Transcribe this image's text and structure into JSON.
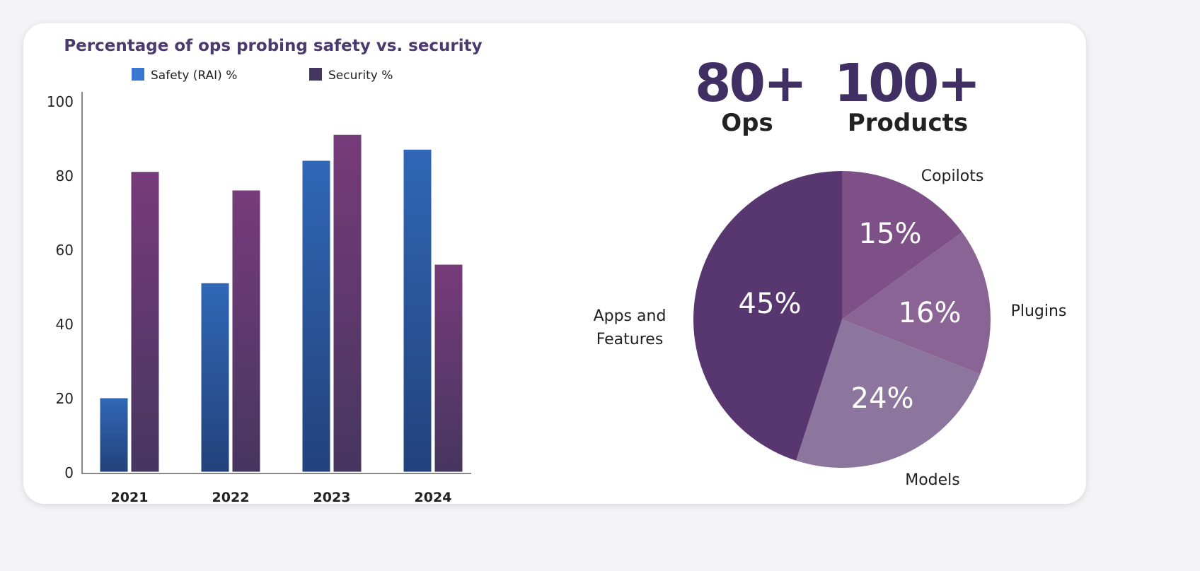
{
  "chart_data": [
    {
      "type": "bar",
      "title": "Percentage of ops probing safety vs. security",
      "categories": [
        "2021",
        "2022",
        "2023",
        "2024"
      ],
      "series": [
        {
          "name": "Safety (RAI) %",
          "values": [
            20,
            51,
            84,
            87
          ],
          "color": "#2f62b0"
        },
        {
          "name": "Security %",
          "values": [
            81,
            76,
            91,
            56
          ],
          "color": "#6e3a78"
        }
      ],
      "ylim": [
        0,
        100
      ],
      "yticks": [
        "0",
        "20",
        "40",
        "60",
        "80",
        "100"
      ],
      "legend": "top",
      "xlabel": "",
      "ylabel": ""
    },
    {
      "type": "pie",
      "slices": [
        {
          "label": "Copilots",
          "value": 15,
          "text": "15%",
          "color": "#7e5088"
        },
        {
          "label": "Plugins",
          "value": 16,
          "text": "16%",
          "color": "#8a6495"
        },
        {
          "label": "Models",
          "value": 24,
          "text": "24%",
          "color": "#8c769d"
        },
        {
          "label": "Apps and Features",
          "label_lines": [
            "Apps and",
            "Features"
          ],
          "value": 45,
          "text": "45%",
          "color": "#58366f"
        }
      ]
    }
  ],
  "stats": [
    {
      "value": "80+",
      "label": "Ops"
    },
    {
      "value": "100+",
      "label": "Products"
    }
  ]
}
